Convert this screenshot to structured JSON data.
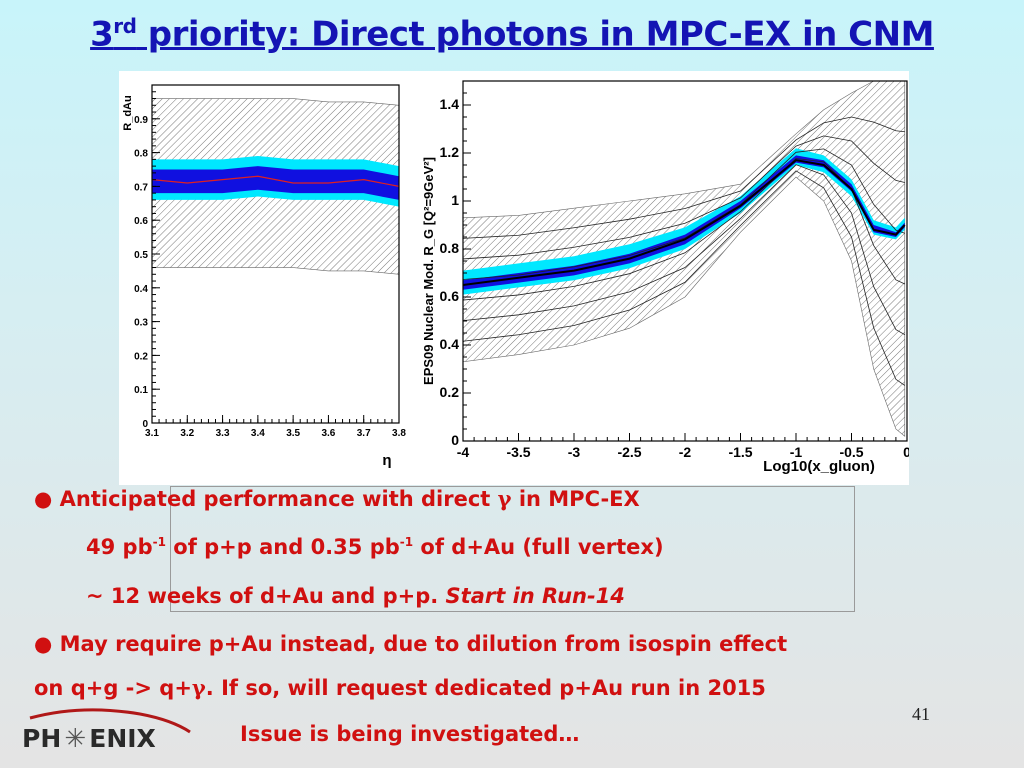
{
  "slide": {
    "title_pre": "3",
    "title_sup": "rd",
    "title_post": " priority: Direct photons in MPC-EX in CNM",
    "page_number": "41"
  },
  "bullets": {
    "b1_pre": "Anticipated performance with direct ",
    "b1_gamma": "γ",
    "b1_post": " in MPC-EX",
    "b2_a": "49 pb",
    "b2_sup1": "-1",
    "b2_b": " of p+p and 0.35 pb",
    "b2_sup2": "-1",
    "b2_c": " of d+Au (full vertex)",
    "b3_a": "~ 12 weeks of d+Au and p+p. ",
    "b3_italic": "Start in Run-14",
    "b4_a": "May require p+Au instead, due to dilution from isospin effect",
    "b5_a": "on q+g -> q+",
    "b5_gamma": "γ",
    "b5_b": ". If so, will request dedicated p+Au run in 2015",
    "b6_a": "Issue is being investigated…"
  },
  "logo": {
    "text_left": "PH",
    "text_right": "ENIX",
    "star_icon": "asterisk-star-icon",
    "arc_color": "#b01818"
  },
  "colors": {
    "title": "#1414b4",
    "bullet": "#d01010",
    "cyan_band": "#00e8ff",
    "blue_band": "#1010e0",
    "central_line": "#e02020"
  },
  "chart_data": [
    {
      "type": "line",
      "title": "",
      "xlabel": "η",
      "ylabel": "R_dAu",
      "xlim": [
        3.1,
        3.8
      ],
      "ylim": [
        0,
        1
      ],
      "xticks": [
        "3.1",
        "3.2",
        "3.3",
        "3.4",
        "3.5",
        "3.6",
        "3.7",
        "3.8"
      ],
      "yticks": [
        "0",
        "0.1",
        "0.2",
        "0.3",
        "0.4",
        "0.5",
        "0.6",
        "0.7",
        "0.8",
        "0.9"
      ],
      "x": [
        3.1,
        3.2,
        3.3,
        3.4,
        3.5,
        3.6,
        3.7,
        3.8
      ],
      "central": [
        0.72,
        0.71,
        0.72,
        0.73,
        0.71,
        0.71,
        0.72,
        0.7
      ],
      "bands": [
        {
          "kind": "hatched",
          "lower": [
            0.46,
            0.46,
            0.46,
            0.46,
            0.46,
            0.45,
            0.45,
            0.44
          ],
          "upper": [
            0.96,
            0.96,
            0.96,
            0.96,
            0.96,
            0.95,
            0.95,
            0.94
          ]
        },
        {
          "kind": "cyan",
          "lower": [
            0.66,
            0.66,
            0.66,
            0.67,
            0.66,
            0.66,
            0.66,
            0.64
          ],
          "upper": [
            0.78,
            0.78,
            0.78,
            0.79,
            0.78,
            0.78,
            0.78,
            0.76
          ]
        },
        {
          "kind": "blue",
          "lower": [
            0.68,
            0.68,
            0.68,
            0.69,
            0.68,
            0.68,
            0.68,
            0.66
          ],
          "upper": [
            0.75,
            0.75,
            0.75,
            0.76,
            0.75,
            0.75,
            0.75,
            0.73
          ]
        }
      ]
    },
    {
      "type": "line",
      "title": "",
      "xlabel": "Log10(x_gluon)",
      "ylabel": "EPS09 Nuclear Mod. R_G [Q²=9GeV²]",
      "xlim": [
        -4,
        0
      ],
      "ylim": [
        0,
        1.5
      ],
      "xticks": [
        "-4",
        "-3.5",
        "-3",
        "-2.5",
        "-2",
        "-1.5",
        "-1",
        "-0.5",
        "0"
      ],
      "yticks": [
        "0",
        "0.2",
        "0.4",
        "0.6",
        "0.8",
        "1",
        "1.2",
        "1.4"
      ],
      "x": [
        -4,
        -3.5,
        -3,
        -2.5,
        -2,
        -1.5,
        -1,
        -0.75,
        -0.5,
        -0.3,
        -0.1,
        -0.02
      ],
      "central": [
        0.65,
        0.68,
        0.71,
        0.76,
        0.84,
        0.98,
        1.17,
        1.15,
        1.05,
        0.88,
        0.86,
        0.9
      ],
      "bands": [
        {
          "kind": "hatched",
          "lower": [
            0.33,
            0.36,
            0.4,
            0.47,
            0.6,
            0.87,
            1.1,
            1.0,
            0.75,
            0.3,
            0.05,
            0.02
          ],
          "upper": [
            0.93,
            0.94,
            0.97,
            1.0,
            1.03,
            1.07,
            1.28,
            1.38,
            1.45,
            1.5,
            1.5,
            1.5
          ]
        },
        {
          "kind": "cyan",
          "lower": [
            0.61,
            0.64,
            0.67,
            0.72,
            0.8,
            0.95,
            1.15,
            1.12,
            1.02,
            0.86,
            0.84,
            0.88
          ],
          "upper": [
            0.71,
            0.74,
            0.77,
            0.82,
            0.89,
            1.02,
            1.22,
            1.19,
            1.09,
            0.92,
            0.89,
            0.93
          ]
        },
        {
          "kind": "blue",
          "lower": [
            0.63,
            0.66,
            0.69,
            0.74,
            0.82,
            0.97,
            1.16,
            1.14,
            1.04,
            0.87,
            0.85,
            0.89
          ],
          "upper": [
            0.67,
            0.7,
            0.73,
            0.78,
            0.86,
            1.0,
            1.19,
            1.17,
            1.07,
            0.9,
            0.87,
            0.91
          ]
        }
      ]
    }
  ]
}
